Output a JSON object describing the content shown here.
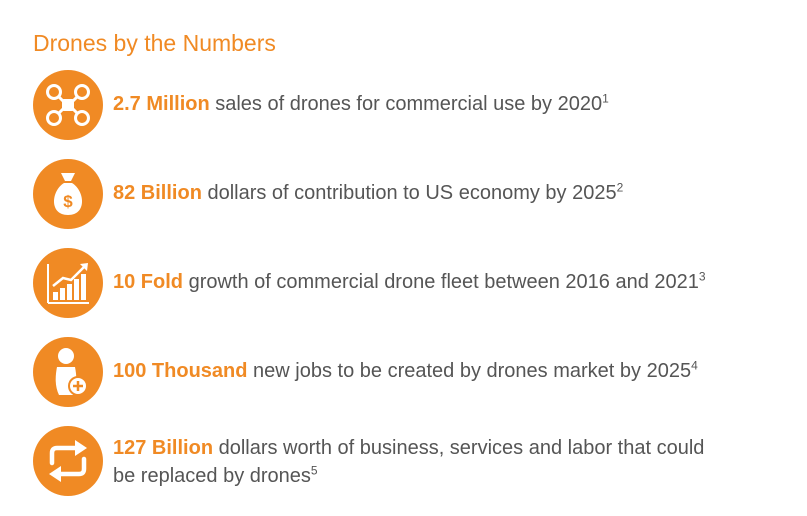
{
  "title": "Drones by the Numbers",
  "colors": {
    "accent": "#F08A24",
    "text": "#555555"
  },
  "stats": [
    {
      "icon": "drone-icon",
      "highlight": "2.7 Million",
      "text": " sales of drones for commercial use by 2020",
      "note": "1"
    },
    {
      "icon": "money-bag-icon",
      "highlight": "82 Billion",
      "text": " dollars of contribution to US economy by 2025",
      "note": "2"
    },
    {
      "icon": "growth-chart-icon",
      "highlight": "10 Fold",
      "text": " growth of commercial drone fleet between 2016 and 2021",
      "note": "3"
    },
    {
      "icon": "new-person-icon",
      "highlight": "100 Thousand",
      "text": " new jobs to be created by drones market by 2025",
      "note": "4"
    },
    {
      "icon": "replace-arrows-icon",
      "highlight": "127 Billion",
      "text": " dollars worth of business, services and labor that could",
      "text2": "be replaced by drones",
      "note": "5"
    }
  ]
}
